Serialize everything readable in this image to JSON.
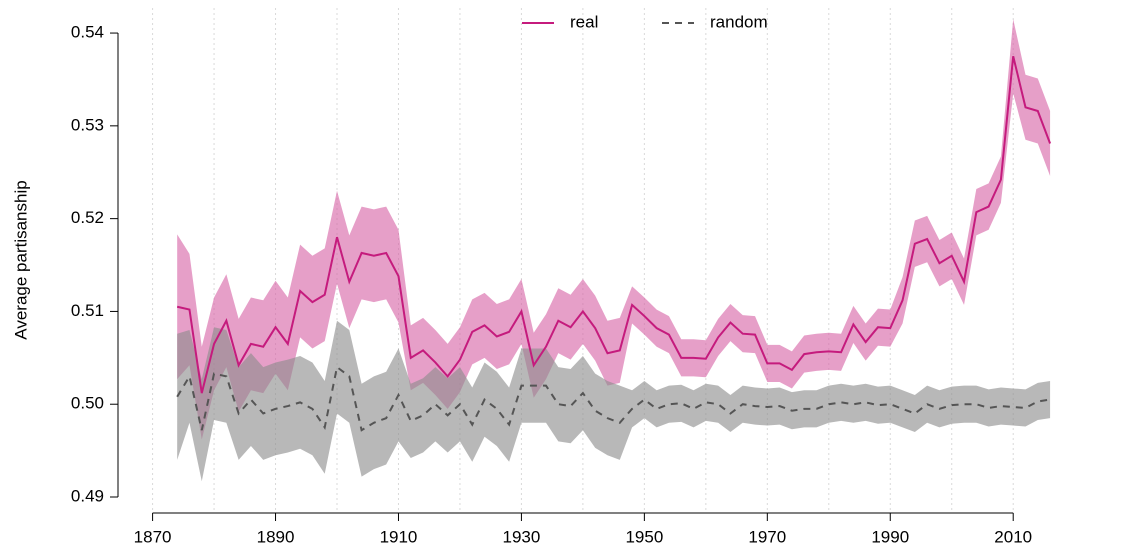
{
  "chart_data": {
    "type": "line",
    "y_label": "Average partisanship",
    "x": [
      1874,
      1876,
      1878,
      1880,
      1882,
      1884,
      1886,
      1888,
      1890,
      1892,
      1894,
      1896,
      1898,
      1900,
      1902,
      1904,
      1906,
      1908,
      1910,
      1912,
      1914,
      1916,
      1918,
      1920,
      1922,
      1924,
      1926,
      1928,
      1930,
      1932,
      1934,
      1936,
      1938,
      1940,
      1942,
      1944,
      1946,
      1948,
      1950,
      1952,
      1954,
      1956,
      1958,
      1960,
      1962,
      1964,
      1966,
      1968,
      1970,
      1972,
      1974,
      1976,
      1978,
      1980,
      1982,
      1984,
      1986,
      1988,
      1990,
      1992,
      1994,
      1996,
      1998,
      2000,
      2002,
      2004,
      2006,
      2008,
      2010,
      2012,
      2014,
      2016
    ],
    "series": [
      {
        "name": "real",
        "color": "#c51b7d",
        "band_color": "#d65fa3",
        "dash": false,
        "values": [
          0.5105,
          0.5102,
          0.5012,
          0.5065,
          0.509,
          0.5042,
          0.5065,
          0.5062,
          0.5083,
          0.5065,
          0.5122,
          0.511,
          0.5118,
          0.518,
          0.5132,
          0.5163,
          0.516,
          0.5163,
          0.5138,
          0.505,
          0.5058,
          0.5045,
          0.503,
          0.5048,
          0.5078,
          0.5085,
          0.5073,
          0.5078,
          0.51,
          0.5042,
          0.5062,
          0.509,
          0.5083,
          0.51,
          0.5082,
          0.5055,
          0.5058,
          0.5107,
          0.5095,
          0.5082,
          0.5075,
          0.505,
          0.505,
          0.5049,
          0.5072,
          0.5088,
          0.5076,
          0.5075,
          0.5044,
          0.5044,
          0.5037,
          0.5054,
          0.5056,
          0.5057,
          0.5056,
          0.5086,
          0.5067,
          0.5083,
          0.5082,
          0.5112,
          0.5173,
          0.5178,
          0.5152,
          0.516,
          0.5132,
          0.5207,
          0.5213,
          0.5242,
          0.5375,
          0.532,
          0.5316,
          0.5281
        ],
        "upper": [
          0.5183,
          0.5162,
          0.5062,
          0.5115,
          0.514,
          0.5092,
          0.5115,
          0.5112,
          0.5133,
          0.5115,
          0.5172,
          0.516,
          0.5168,
          0.523,
          0.5182,
          0.5213,
          0.521,
          0.5213,
          0.5188,
          0.5085,
          0.5093,
          0.508,
          0.5065,
          0.5083,
          0.5113,
          0.512,
          0.5108,
          0.5113,
          0.5135,
          0.5077,
          0.5097,
          0.5125,
          0.5118,
          0.5135,
          0.5117,
          0.509,
          0.5093,
          0.5127,
          0.5115,
          0.5102,
          0.5095,
          0.507,
          0.507,
          0.5069,
          0.5092,
          0.5108,
          0.5096,
          0.5095,
          0.5064,
          0.5064,
          0.5057,
          0.5074,
          0.5076,
          0.5077,
          0.5076,
          0.5106,
          0.5087,
          0.5103,
          0.5102,
          0.5137,
          0.5198,
          0.5203,
          0.5177,
          0.5185,
          0.5157,
          0.5232,
          0.5238,
          0.5267,
          0.5415,
          0.5355,
          0.5351,
          0.5316
        ],
        "lower": [
          0.5027,
          0.5042,
          0.4962,
          0.5015,
          0.504,
          0.4992,
          0.5015,
          0.5012,
          0.5033,
          0.5015,
          0.5072,
          0.506,
          0.5068,
          0.513,
          0.5082,
          0.5113,
          0.511,
          0.5113,
          0.5088,
          0.5015,
          0.5023,
          0.501,
          0.4995,
          0.5013,
          0.5043,
          0.505,
          0.5038,
          0.5043,
          0.5065,
          0.5007,
          0.5027,
          0.5055,
          0.5048,
          0.5065,
          0.5047,
          0.502,
          0.5023,
          0.5087,
          0.5075,
          0.5062,
          0.5055,
          0.503,
          0.503,
          0.5029,
          0.5052,
          0.5068,
          0.5056,
          0.5055,
          0.5024,
          0.5024,
          0.5017,
          0.5034,
          0.5036,
          0.5037,
          0.5036,
          0.5066,
          0.5047,
          0.5063,
          0.5062,
          0.5087,
          0.5148,
          0.5153,
          0.5127,
          0.5135,
          0.5107,
          0.5182,
          0.5188,
          0.5217,
          0.5335,
          0.5285,
          0.5281,
          0.5246
        ]
      },
      {
        "name": "random",
        "color": "#555555",
        "band_color": "#8c8c8c",
        "dash": true,
        "values": [
          0.5008,
          0.503,
          0.4972,
          0.5033,
          0.503,
          0.499,
          0.5005,
          0.499,
          0.4995,
          0.4998,
          0.5002,
          0.4995,
          0.4975,
          0.504,
          0.503,
          0.4972,
          0.498,
          0.4985,
          0.501,
          0.4982,
          0.4988,
          0.5,
          0.4988,
          0.5,
          0.4978,
          0.5005,
          0.4995,
          0.4978,
          0.502,
          0.502,
          0.502,
          0.5,
          0.4998,
          0.5012,
          0.4993,
          0.4985,
          0.498,
          0.4995,
          0.5005,
          0.4995,
          0.5,
          0.5001,
          0.4995,
          0.5002,
          0.5,
          0.499,
          0.5,
          0.4998,
          0.4997,
          0.4998,
          0.4993,
          0.4995,
          0.4995,
          0.5,
          0.5002,
          0.5,
          0.5002,
          0.4999,
          0.5,
          0.4995,
          0.499,
          0.5,
          0.4995,
          0.4999,
          0.5,
          0.5,
          0.4996,
          0.4998,
          0.4997,
          0.4996,
          0.5003,
          0.5005
        ],
        "upper": [
          0.5076,
          0.508,
          0.5027,
          0.5083,
          0.508,
          0.504,
          0.5055,
          0.504,
          0.5045,
          0.5048,
          0.5052,
          0.5045,
          0.5025,
          0.509,
          0.508,
          0.5022,
          0.503,
          0.5035,
          0.506,
          0.5022,
          0.5028,
          0.504,
          0.5028,
          0.504,
          0.5018,
          0.5045,
          0.5035,
          0.5018,
          0.506,
          0.506,
          0.506,
          0.504,
          0.5038,
          0.5052,
          0.5033,
          0.5025,
          0.502,
          0.5015,
          0.5025,
          0.5015,
          0.502,
          0.5021,
          0.5015,
          0.5022,
          0.502,
          0.501,
          0.502,
          0.5018,
          0.5017,
          0.5018,
          0.5013,
          0.5015,
          0.5015,
          0.502,
          0.5022,
          0.502,
          0.5022,
          0.5019,
          0.502,
          0.5015,
          0.501,
          0.502,
          0.5015,
          0.5019,
          0.502,
          0.502,
          0.5016,
          0.5018,
          0.5017,
          0.5016,
          0.5023,
          0.5025
        ],
        "lower": [
          0.494,
          0.498,
          0.4917,
          0.4983,
          0.498,
          0.494,
          0.4955,
          0.494,
          0.4945,
          0.4948,
          0.4952,
          0.4945,
          0.4925,
          0.499,
          0.498,
          0.4922,
          0.493,
          0.4935,
          0.496,
          0.4942,
          0.4948,
          0.496,
          0.4948,
          0.496,
          0.4938,
          0.4965,
          0.4955,
          0.4938,
          0.498,
          0.498,
          0.498,
          0.496,
          0.4958,
          0.4972,
          0.4953,
          0.4945,
          0.494,
          0.4975,
          0.4985,
          0.4975,
          0.498,
          0.4981,
          0.4975,
          0.4982,
          0.498,
          0.497,
          0.498,
          0.4978,
          0.4977,
          0.4978,
          0.4973,
          0.4975,
          0.4975,
          0.498,
          0.4982,
          0.498,
          0.4982,
          0.4979,
          0.498,
          0.4975,
          0.497,
          0.498,
          0.4975,
          0.4979,
          0.498,
          0.498,
          0.4976,
          0.4978,
          0.4977,
          0.4976,
          0.4983,
          0.4985
        ]
      }
    ],
    "xlim": [
      1866,
      2029
    ],
    "xticks": [
      1870,
      1890,
      1910,
      1930,
      1950,
      1970,
      1990,
      2010
    ],
    "xgrid": [
      1870,
      1880,
      1890,
      1900,
      1910,
      1920,
      1930,
      1940,
      1950,
      1960,
      1970,
      1980,
      1990,
      2000,
      2010
    ],
    "ylim": [
      0.4886,
      0.5427
    ],
    "yticks": [
      {
        "value": 0.49,
        "label": "0.49"
      },
      {
        "value": 0.5,
        "label": "0.50"
      },
      0.51,
      0.52,
      0.53,
      0.54
    ],
    "legend": "top"
  }
}
